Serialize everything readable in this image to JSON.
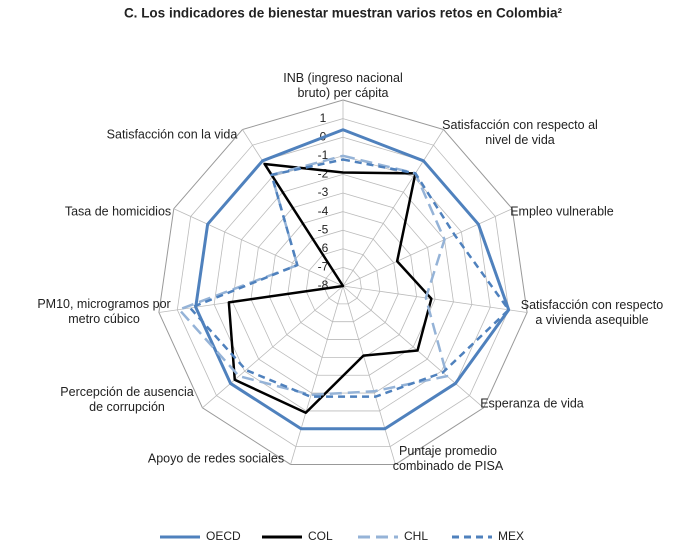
{
  "chart_data": {
    "type": "radar",
    "title": "C. Los indicadores de bienestar muestran varios retos en Colombia²",
    "categories": [
      "INB (ingreso nacional bruto) per cápita",
      "Satisfacción con respecto al nivel de vida",
      "Empleo vulnerable",
      "Satisfacción con respecto a vivienda asequible",
      "Esperanza de vida",
      "Puntaje promedio combinado de PISA",
      "Apoyo de redes sociales",
      "Percepción de ausencia de corrupción",
      "PM10, microgramos por metro cúbico",
      "Tasa de homicidios",
      "Satisfacción con la vida"
    ],
    "ylim": [
      -8,
      2
    ],
    "yticks": [
      1,
      0,
      -1,
      -2,
      -3,
      -4,
      -5,
      -6,
      -7,
      -8
    ],
    "series": [
      {
        "name": "OECD",
        "color": "#4f81bd",
        "dash": "solid",
        "values": [
          0.4,
          0,
          0,
          1,
          0,
          0,
          0,
          0,
          0,
          0,
          0
        ]
      },
      {
        "name": "COL",
        "color": "#000000",
        "dash": "solid",
        "values": [
          -1.9,
          -0.8,
          -4.8,
          -3.2,
          -2.7,
          -4.1,
          -0.9,
          -0.3,
          -1.8,
          -8,
          -0.2
        ]
      },
      {
        "name": "CHL",
        "color": "#95b3d7",
        "dash": "long",
        "values": [
          -1,
          -0.8,
          -2,
          -3.5,
          -0.6,
          -2.1,
          -1.9,
          -0.6,
          0.9,
          -5.3,
          -0.9
        ]
      },
      {
        "name": "MEX",
        "color": "#4f81bd",
        "dash": "short",
        "values": [
          -1.2,
          -0.8,
          -1.4,
          1,
          -0.9,
          -1.8,
          -1.8,
          -1.1,
          0.3,
          -5.3,
          -0.9
        ]
      }
    ]
  }
}
